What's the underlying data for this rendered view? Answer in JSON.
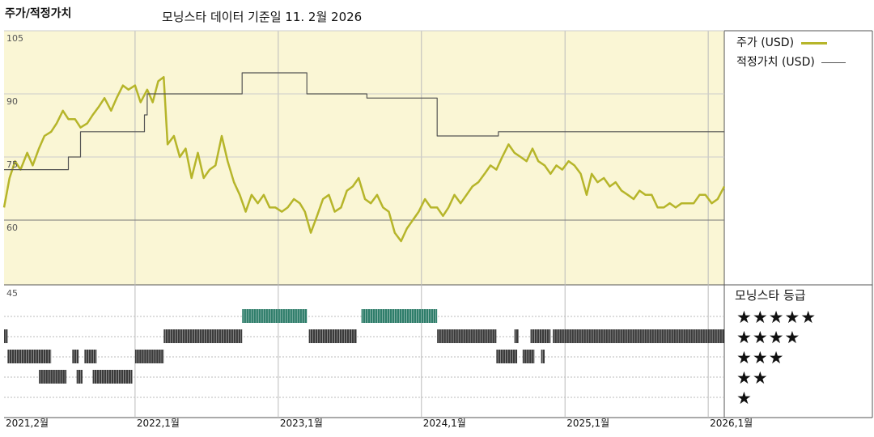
{
  "title": "주가/적정가치",
  "subtitle": "모닝스타 데이터 기준일 11. 2월 2026",
  "legend": [
    {
      "label": "주가 (USD)",
      "color": "#b6b52a"
    },
    {
      "label": "적정가치 (USD)",
      "color": "#555555"
    }
  ],
  "rating_panel": {
    "title": "모닝스타 등급",
    "stars": [
      "★★★★★",
      "★★★★",
      "★★★",
      "★★",
      "★"
    ]
  },
  "chart_data": {
    "type": "line",
    "ylim": [
      45,
      105
    ],
    "yticks": [
      105,
      90,
      75,
      60,
      45
    ],
    "xlim": [
      "2021-02-01",
      "2026-02-11"
    ],
    "xticks": [
      {
        "date": "2021-02-01",
        "label": "2021,2월"
      },
      {
        "date": "2022-01-01",
        "label": "2022,1월"
      },
      {
        "date": "2023-01-01",
        "label": "2023,1월"
      },
      {
        "date": "2024-01-01",
        "label": "2024,1월"
      },
      {
        "date": "2025-01-01",
        "label": "2025,1월"
      },
      {
        "date": "2026-01-01",
        "label": "2026,1월"
      }
    ],
    "series": [
      {
        "name": "주가 (USD)",
        "color": "#b6b52a",
        "points": [
          [
            "2021-02-01",
            63
          ],
          [
            "2021-02-15",
            70
          ],
          [
            "2021-03-01",
            74
          ],
          [
            "2021-03-15",
            72
          ],
          [
            "2021-04-01",
            76
          ],
          [
            "2021-04-15",
            73
          ],
          [
            "2021-05-01",
            77
          ],
          [
            "2021-05-15",
            80
          ],
          [
            "2021-06-01",
            81
          ],
          [
            "2021-06-15",
            83
          ],
          [
            "2021-07-01",
            86
          ],
          [
            "2021-07-15",
            84
          ],
          [
            "2021-08-01",
            84
          ],
          [
            "2021-08-15",
            82
          ],
          [
            "2021-09-01",
            83
          ],
          [
            "2021-09-15",
            85
          ],
          [
            "2021-10-01",
            87
          ],
          [
            "2021-10-15",
            89
          ],
          [
            "2021-11-01",
            86
          ],
          [
            "2021-11-15",
            89
          ],
          [
            "2021-12-01",
            92
          ],
          [
            "2021-12-15",
            91
          ],
          [
            "2022-01-01",
            92
          ],
          [
            "2022-01-15",
            88
          ],
          [
            "2022-02-01",
            91
          ],
          [
            "2022-02-15",
            88
          ],
          [
            "2022-03-01",
            93
          ],
          [
            "2022-03-15",
            94
          ],
          [
            "2022-03-25",
            78
          ],
          [
            "2022-04-10",
            80
          ],
          [
            "2022-04-25",
            75
          ],
          [
            "2022-05-10",
            77
          ],
          [
            "2022-05-25",
            70
          ],
          [
            "2022-06-10",
            76
          ],
          [
            "2022-06-25",
            70
          ],
          [
            "2022-07-10",
            72
          ],
          [
            "2022-07-25",
            73
          ],
          [
            "2022-08-10",
            80
          ],
          [
            "2022-08-25",
            74
          ],
          [
            "2022-09-10",
            69
          ],
          [
            "2022-09-25",
            66
          ],
          [
            "2022-10-10",
            62
          ],
          [
            "2022-10-25",
            66
          ],
          [
            "2022-11-10",
            64
          ],
          [
            "2022-11-25",
            66
          ],
          [
            "2022-12-10",
            63
          ],
          [
            "2022-12-25",
            63
          ],
          [
            "2023-01-10",
            62
          ],
          [
            "2023-01-25",
            63
          ],
          [
            "2023-02-10",
            65
          ],
          [
            "2023-02-25",
            64
          ],
          [
            "2023-03-10",
            62
          ],
          [
            "2023-03-25",
            57
          ],
          [
            "2023-04-10",
            61
          ],
          [
            "2023-04-25",
            65
          ],
          [
            "2023-05-10",
            66
          ],
          [
            "2023-05-25",
            62
          ],
          [
            "2023-06-10",
            63
          ],
          [
            "2023-06-25",
            67
          ],
          [
            "2023-07-10",
            68
          ],
          [
            "2023-07-25",
            70
          ],
          [
            "2023-08-10",
            65
          ],
          [
            "2023-08-25",
            64
          ],
          [
            "2023-09-10",
            66
          ],
          [
            "2023-09-25",
            63
          ],
          [
            "2023-10-10",
            62
          ],
          [
            "2023-10-25",
            57
          ],
          [
            "2023-11-10",
            55
          ],
          [
            "2023-11-25",
            58
          ],
          [
            "2023-12-10",
            60
          ],
          [
            "2023-12-25",
            62
          ],
          [
            "2024-01-10",
            65
          ],
          [
            "2024-01-25",
            63
          ],
          [
            "2024-02-10",
            63
          ],
          [
            "2024-02-25",
            61
          ],
          [
            "2024-03-10",
            63
          ],
          [
            "2024-03-25",
            66
          ],
          [
            "2024-04-10",
            64
          ],
          [
            "2024-04-25",
            66
          ],
          [
            "2024-05-10",
            68
          ],
          [
            "2024-05-25",
            69
          ],
          [
            "2024-06-10",
            71
          ],
          [
            "2024-06-25",
            73
          ],
          [
            "2024-07-10",
            72
          ],
          [
            "2024-07-25",
            75
          ],
          [
            "2024-08-10",
            78
          ],
          [
            "2024-08-25",
            76
          ],
          [
            "2024-09-10",
            75
          ],
          [
            "2024-09-25",
            74
          ],
          [
            "2024-10-10",
            77
          ],
          [
            "2024-10-25",
            74
          ],
          [
            "2024-11-10",
            73
          ],
          [
            "2024-11-25",
            71
          ],
          [
            "2024-12-10",
            73
          ],
          [
            "2024-12-25",
            72
          ],
          [
            "2025-01-10",
            74
          ],
          [
            "2025-01-25",
            73
          ],
          [
            "2025-02-10",
            71
          ],
          [
            "2025-02-25",
            66
          ],
          [
            "2025-03-10",
            71
          ],
          [
            "2025-03-25",
            69
          ],
          [
            "2025-04-10",
            70
          ],
          [
            "2025-04-25",
            68
          ],
          [
            "2025-05-10",
            69
          ],
          [
            "2025-05-25",
            67
          ],
          [
            "2025-06-10",
            66
          ],
          [
            "2025-06-25",
            65
          ],
          [
            "2025-07-10",
            67
          ],
          [
            "2025-07-25",
            66
          ],
          [
            "2025-08-10",
            66
          ],
          [
            "2025-08-25",
            63
          ],
          [
            "2025-09-10",
            63
          ],
          [
            "2025-09-25",
            64
          ],
          [
            "2025-10-10",
            63
          ],
          [
            "2025-10-25",
            64
          ],
          [
            "2025-11-10",
            64
          ],
          [
            "2025-11-25",
            64
          ],
          [
            "2025-12-10",
            66
          ],
          [
            "2025-12-25",
            66
          ],
          [
            "2026-01-10",
            64
          ],
          [
            "2026-01-25",
            65
          ],
          [
            "2026-02-11",
            68
          ]
        ]
      },
      {
        "name": "적정가치 (USD)",
        "color": "#555555",
        "step": true,
        "points": [
          [
            "2021-02-01",
            72
          ],
          [
            "2021-07-15",
            72
          ],
          [
            "2021-07-15",
            75
          ],
          [
            "2021-08-15",
            75
          ],
          [
            "2021-08-15",
            81
          ],
          [
            "2022-01-25",
            81
          ],
          [
            "2022-01-25",
            85
          ],
          [
            "2022-02-01",
            85
          ],
          [
            "2022-02-01",
            90
          ],
          [
            "2022-10-01",
            90
          ],
          [
            "2022-10-01",
            95
          ],
          [
            "2023-03-15",
            95
          ],
          [
            "2023-03-15",
            90
          ],
          [
            "2023-08-15",
            90
          ],
          [
            "2023-08-15",
            89
          ],
          [
            "2024-02-10",
            89
          ],
          [
            "2024-02-10",
            80
          ],
          [
            "2024-07-15",
            80
          ],
          [
            "2024-07-15",
            81
          ],
          [
            "2026-02-11",
            81
          ]
        ]
      }
    ],
    "rating_rows": [
      {
        "stars": 5,
        "segments": [
          [
            "2022-10-01",
            "2023-03-15"
          ],
          [
            "2023-08-01",
            "2024-02-10"
          ]
        ]
      },
      {
        "stars": 4,
        "segments": [
          [
            "2021-02-01",
            "2021-02-10"
          ],
          [
            "2022-03-15",
            "2022-10-01"
          ],
          [
            "2023-03-20",
            "2023-07-20"
          ],
          [
            "2024-02-10",
            "2024-07-10"
          ],
          [
            "2024-08-25",
            "2024-09-05"
          ],
          [
            "2024-10-05",
            "2024-11-25"
          ],
          [
            "2024-12-01",
            "2026-02-11"
          ]
        ]
      },
      {
        "stars": 3,
        "segments": [
          [
            "2021-02-10",
            "2021-06-01"
          ],
          [
            "2021-07-25",
            "2021-08-10"
          ],
          [
            "2021-08-25",
            "2021-09-25"
          ],
          [
            "2022-01-01",
            "2022-03-15"
          ],
          [
            "2024-07-10",
            "2024-09-01"
          ],
          [
            "2024-09-15",
            "2024-10-15"
          ],
          [
            "2024-11-01",
            "2024-11-10"
          ]
        ]
      },
      {
        "stars": 2,
        "segments": [
          [
            "2021-05-01",
            "2021-07-10"
          ],
          [
            "2021-08-05",
            "2021-08-20"
          ],
          [
            "2021-09-15",
            "2021-12-25"
          ]
        ]
      },
      {
        "stars": 1,
        "segments": []
      }
    ]
  }
}
